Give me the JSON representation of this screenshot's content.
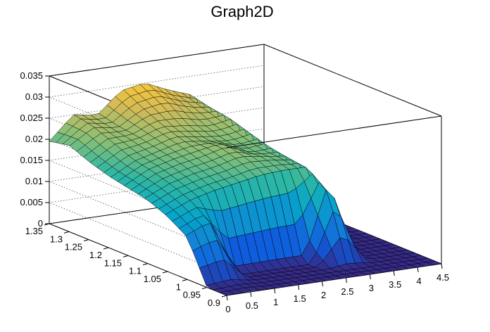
{
  "chart_data": {
    "type": "surface",
    "title": "Graph2D",
    "xlim": [
      0,
      4.5
    ],
    "ylim": [
      0.9,
      1.35
    ],
    "zlim": [
      0,
      0.035
    ],
    "x_ticks": [
      "0",
      "0.5",
      "1",
      "1.5",
      "2",
      "2.5",
      "3",
      "3.5",
      "4",
      "4.5"
    ],
    "y_ticks": [
      "0.9",
      "0.95",
      "1",
      "1.05",
      "1.1",
      "1.15",
      "1.2",
      "1.25",
      "1.3",
      "1.35"
    ],
    "z_ticks": [
      "0",
      "0.005",
      "0.01",
      "0.015",
      "0.02",
      "0.025",
      "0.03",
      "0.035"
    ],
    "grid": true,
    "palette": [
      "#352a87",
      "#0f5cdd",
      "#1481d6",
      "#06a4ca",
      "#2eb7a4",
      "#87bf77",
      "#d1bb59",
      "#fec832",
      "#f9fb0e"
    ],
    "x": [
      0,
      0.5,
      1,
      1.5,
      2,
      2.5,
      3,
      3.5,
      4,
      4.5
    ],
    "y": [
      0.9,
      0.95,
      1,
      1.05,
      1.1,
      1.15,
      1.2,
      1.25,
      1.3,
      1.35
    ],
    "z": [
      [
        0.0,
        0.0002,
        0.0,
        0.0,
        0.0,
        0.0,
        0.0,
        0.0,
        0.0,
        0.0
      ],
      [
        0.0,
        0.0005,
        0.0,
        0.0,
        0.0,
        0.0,
        0.0,
        0.0,
        0.0,
        0.0
      ],
      [
        0.01,
        0.0125,
        0.0,
        0.0,
        0.0,
        0.0,
        0.018,
        0.0,
        0.0,
        0.0
      ],
      [
        0.013,
        0.0155,
        0.017,
        0.018,
        0.019,
        0.0195,
        0.0195,
        0.0,
        0.0,
        0.0
      ],
      [
        0.015,
        0.0175,
        0.019,
        0.02,
        0.0215,
        0.021,
        0.02,
        0.0,
        0.0,
        0.0
      ],
      [
        0.016,
        0.019,
        0.0205,
        0.0215,
        0.023,
        0.0205,
        0.021,
        0.0,
        0.0,
        0.0
      ],
      [
        0.017,
        0.02,
        0.0215,
        0.023,
        0.022,
        0.0215,
        0.0225,
        0.0,
        0.0,
        0.0
      ],
      [
        0.0185,
        0.022,
        0.0225,
        0.0245,
        0.024,
        0.023,
        0.024,
        0.0,
        0.0,
        0.0
      ],
      [
        0.0205,
        0.024,
        0.023,
        0.0265,
        0.0275,
        0.0255,
        0.0245,
        0.0,
        0.0,
        0.0
      ],
      [
        0.0195,
        0.025,
        0.024,
        0.029,
        0.03,
        0.0275,
        0.0255,
        0.0,
        0.0,
        0.0
      ]
    ]
  }
}
